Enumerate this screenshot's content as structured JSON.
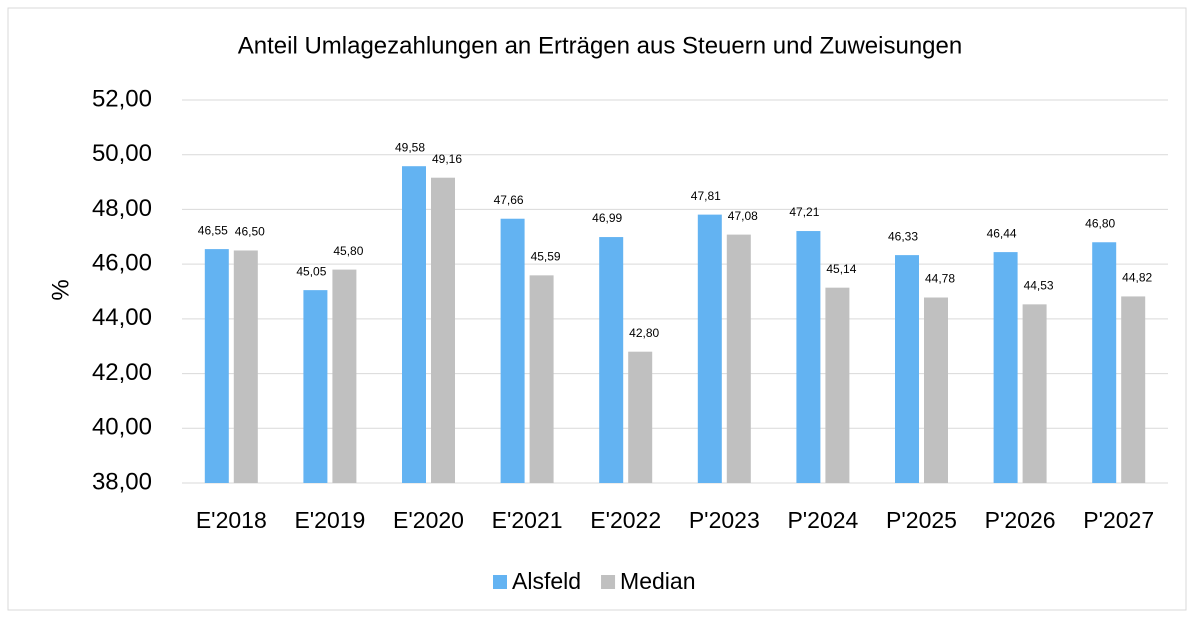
{
  "chart_data": {
    "type": "bar",
    "title": "Anteil Umlagezahlungen an Erträgen aus Steuern und Zuweisungen",
    "y_label": "%",
    "categories": [
      "E'2018",
      "E'2019",
      "E'2020",
      "E'2021",
      "E'2022",
      "P'2023",
      "P'2024",
      "P'2025",
      "P'2026",
      "P'2027"
    ],
    "series": [
      {
        "name": "Alsfeld",
        "color": "#63b3f2",
        "values": [
          46.55,
          45.05,
          49.58,
          47.66,
          46.99,
          47.81,
          47.21,
          46.33,
          46.44,
          46.8
        ],
        "value_labels": [
          "46,55",
          "45,05",
          "49,58",
          "47,66",
          "46,99",
          "47,81",
          "47,21",
          "46,33",
          "46,44",
          "46,80"
        ]
      },
      {
        "name": "Median",
        "color": "#c0c0c0",
        "values": [
          46.5,
          45.8,
          49.16,
          45.59,
          42.8,
          47.08,
          45.14,
          44.78,
          44.53,
          44.82
        ],
        "value_labels": [
          "46,50",
          "45,80",
          "49,16",
          "45,59",
          "42,80",
          "47,08",
          "45,14",
          "44,78",
          "44,53",
          "44,82"
        ]
      }
    ],
    "ylim": [
      38,
      52
    ],
    "yticks": [
      {
        "value": 38,
        "label": "38,00"
      },
      {
        "value": 40,
        "label": "40,00"
      },
      {
        "value": 42,
        "label": "42,00"
      },
      {
        "value": 44,
        "label": "44,00"
      },
      {
        "value": 46,
        "label": "46,00"
      },
      {
        "value": 48,
        "label": "48,00"
      },
      {
        "value": 50,
        "label": "50,00"
      },
      {
        "value": 52,
        "label": "52,00"
      }
    ],
    "grid": true,
    "legend": "bottom"
  }
}
